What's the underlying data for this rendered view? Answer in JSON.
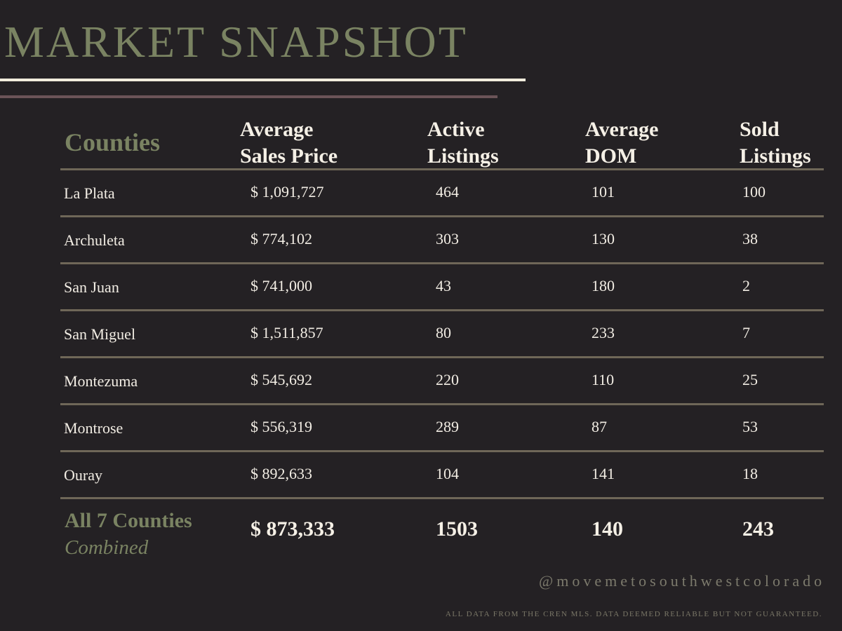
{
  "title": "MARKET SNAPSHOT",
  "colors": {
    "background": "#242124",
    "accent_green": "#7a8362",
    "text_light": "#f2ede4",
    "rule_cream": "#f1ecdc",
    "rule_mauve": "#6b5458",
    "row_divider": "#6f6758"
  },
  "table": {
    "headers": {
      "counties": "Counties",
      "avg_price": [
        "Average",
        "Sales Price"
      ],
      "active": [
        "Active",
        "Listings"
      ],
      "dom": [
        "Average",
        "DOM"
      ],
      "sold": [
        "Sold",
        "Listings"
      ]
    },
    "rows": [
      {
        "county": "La Plata",
        "price": "$ 1,091,727",
        "active": "464",
        "dom": "101",
        "sold": "100"
      },
      {
        "county": "Archuleta",
        "price": "$ 774,102",
        "active": "303",
        "dom": "130",
        "sold": "38"
      },
      {
        "county": "San Juan",
        "price": "$ 741,000",
        "active": "43",
        "dom": "180",
        "sold": "2"
      },
      {
        "county": "San Miguel",
        "price": "$ 1,511,857",
        "active": "80",
        "dom": "233",
        "sold": "7"
      },
      {
        "county": "Montezuma",
        "price": "$ 545,692",
        "active": "220",
        "dom": "110",
        "sold": "25"
      },
      {
        "county": "Montrose",
        "price": "$ 556,319",
        "active": "289",
        "dom": "87",
        "sold": "53"
      },
      {
        "county": "Ouray",
        "price": "$ 892,633",
        "active": "104",
        "dom": "141",
        "sold": "18"
      }
    ],
    "total": {
      "label": "All 7 Counties",
      "sublabel": "Combined",
      "price": "$ 873,333",
      "active": "1503",
      "dom": "140",
      "sold": "243"
    }
  },
  "footer": {
    "handle": "@movemetosouthwestcolorado",
    "disclaimer": "ALL DATA FROM THE CREN MLS. DATA DEEMED RELIABLE BUT NOT GUARANTEED."
  }
}
